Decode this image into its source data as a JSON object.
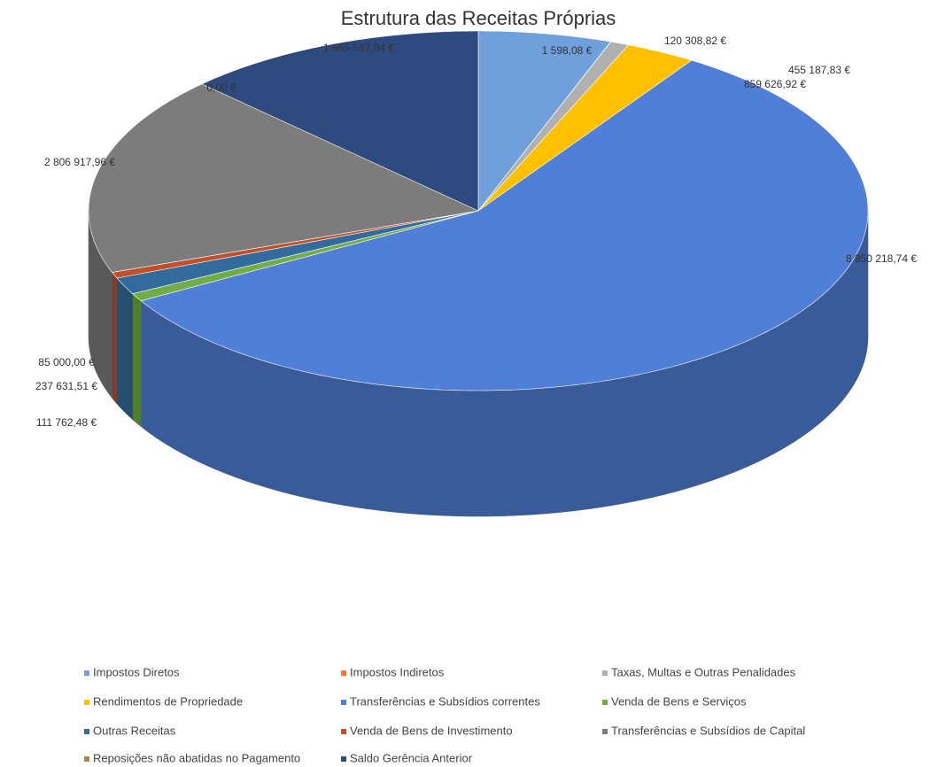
{
  "chart_data": {
    "type": "pie3d",
    "title": "Estrutura das Receitas Próprias",
    "categories": [
      "Impostos Diretos",
      "Impostos Indiretos",
      "Taxas, Multas e Outras Penalidades",
      "Rendimentos de Propriedade",
      "Transferências e Subsídios correntes",
      "Venda de Bens e Serviços",
      "Outras Receitas",
      "Venda de Bens de Investimento",
      "Transferências e Subsídios de Capital",
      "Reposições não abatidas no Pagamento",
      "Saldo Gerência Anterior"
    ],
    "values": [
      859626.92,
      1598.08,
      120308.82,
      455187.83,
      8950218.74,
      111762.48,
      237631.51,
      85000.0,
      2806917.96,
      0.0,
      1955567.04
    ],
    "value_labels": [
      "859 626,92 €",
      "1 598,08 €",
      "120 308,82 €",
      "455 187,83 €",
      "8 950 218,74 €",
      "111 762,48 €",
      "237 631,51 €",
      "85 000,00 €",
      "2 806 917,96 €",
      "0,00 €",
      "1 955 567,04 €"
    ],
    "colors": [
      "#6fa0dc",
      "#ed7d31",
      "#b0b0b0",
      "#ffc000",
      "#4f7fd6",
      "#70ad47",
      "#336c9c",
      "#c0502a",
      "#7c7c7c",
      "#a78a4a",
      "#2e4a7e"
    ],
    "legend": "bottom"
  }
}
